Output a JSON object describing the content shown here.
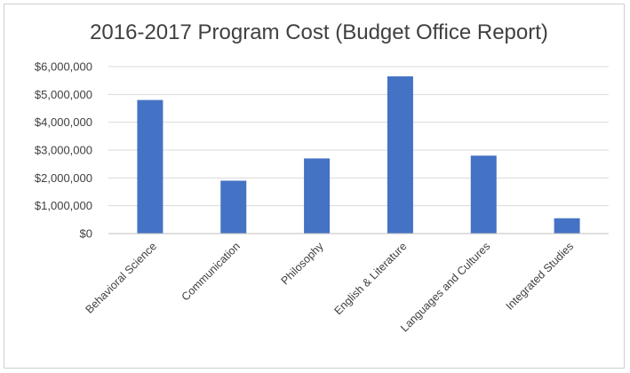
{
  "chart_data": {
    "type": "bar",
    "title": "2016-2017 Program Cost (Budget Office Report)",
    "xlabel": "",
    "ylabel": "",
    "categories": [
      "Behavioral Science",
      "Communication",
      "Philosophy",
      "English & Literature",
      "Languages and Cultures",
      "Integrated Studies"
    ],
    "values": [
      4800000,
      1900000,
      2700000,
      5650000,
      2800000,
      550000
    ],
    "ylim": [
      0,
      6000000
    ],
    "yticks": [
      0,
      1000000,
      2000000,
      3000000,
      4000000,
      5000000,
      6000000
    ],
    "ytick_labels": [
      "$0",
      "$1,000,000",
      "$2,000,000",
      "$3,000,000",
      "$4,000,000",
      "$5,000,000",
      "$6,000,000"
    ],
    "grid": true,
    "legend": "none",
    "colors": {
      "bar": "#4472c4",
      "grid": "#d9d9d9",
      "axis": "#bfbfbf",
      "text": "#404040"
    }
  }
}
